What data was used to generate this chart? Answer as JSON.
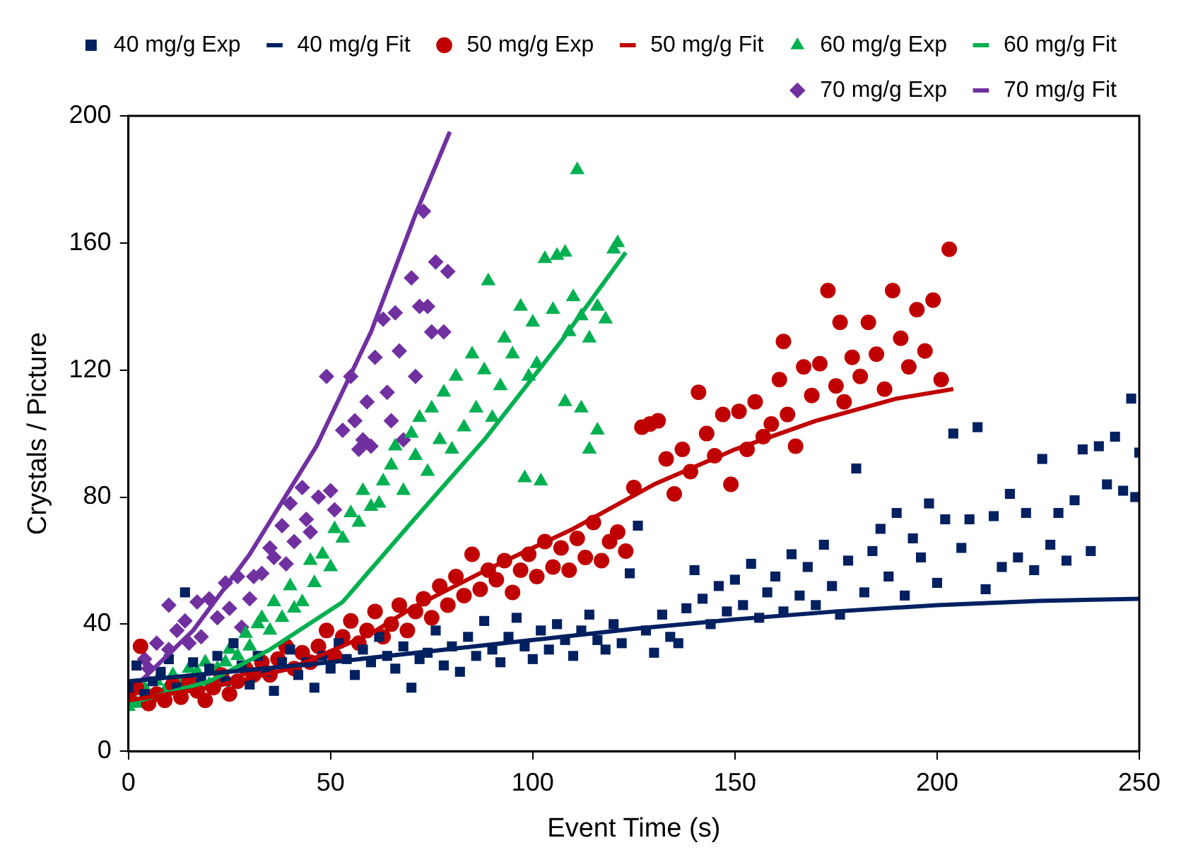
{
  "chart_data": {
    "type": "scatter",
    "xlabel": "Event Time (s)",
    "ylabel": "Crystals / Picture",
    "xlim": [
      0,
      250
    ],
    "xticks": [
      0,
      50,
      100,
      150,
      200,
      250
    ],
    "ylim": [
      0,
      200
    ],
    "yticks": [
      0,
      40,
      80,
      120,
      160,
      200
    ],
    "grid": false,
    "legend": "top",
    "series": [
      {
        "name": "40 mg/g Exp",
        "type": "scatter",
        "marker": "square",
        "color": "#002060",
        "x": [
          0,
          2,
          4,
          6,
          8,
          10,
          12,
          14,
          16,
          18,
          20,
          22,
          24,
          26,
          28,
          30,
          32,
          34,
          36,
          38,
          40,
          42,
          44,
          46,
          48,
          50,
          52,
          54,
          56,
          58,
          60,
          62,
          64,
          66,
          68,
          70,
          72,
          74,
          76,
          78,
          80,
          82,
          84,
          86,
          88,
          90,
          92,
          94,
          96,
          98,
          100,
          102,
          104,
          106,
          108,
          110,
          112,
          114,
          116,
          118,
          120,
          122,
          124,
          126,
          128,
          130,
          132,
          134,
          136,
          138,
          140,
          142,
          144,
          146,
          148,
          150,
          152,
          154,
          156,
          158,
          160,
          162,
          164,
          166,
          168,
          170,
          172,
          174,
          176,
          178,
          180,
          182,
          184,
          186,
          188,
          190,
          192,
          194,
          196,
          198,
          200,
          202,
          204,
          206,
          208,
          210,
          212,
          214,
          216,
          218,
          220,
          222,
          224,
          226,
          228,
          230,
          232,
          234,
          236,
          238,
          240,
          242,
          244,
          246,
          248,
          249,
          250
        ],
        "values": [
          20,
          27,
          18,
          22,
          25,
          29,
          20,
          50,
          28,
          23,
          26,
          30,
          22,
          34,
          27,
          21,
          30,
          25,
          19,
          28,
          32,
          24,
          28,
          20,
          30,
          26,
          34,
          29,
          24,
          32,
          28,
          36,
          30,
          26,
          33,
          20,
          29,
          31,
          38,
          27,
          33,
          25,
          36,
          30,
          41,
          32,
          28,
          36,
          42,
          33,
          29,
          38,
          32,
          40,
          35,
          30,
          38,
          43,
          35,
          32,
          40,
          34,
          56,
          71,
          38,
          31,
          43,
          36,
          34,
          45,
          57,
          48,
          40,
          52,
          44,
          54,
          46,
          59,
          42,
          50,
          55,
          44,
          62,
          49,
          58,
          46,
          65,
          52,
          43,
          60,
          89,
          50,
          63,
          70,
          55,
          75,
          49,
          67,
          61,
          78,
          53,
          73,
          100,
          64,
          73,
          102,
          51,
          74,
          58,
          81,
          61,
          75,
          57,
          92,
          65,
          75,
          60,
          79,
          95,
          63,
          96,
          84,
          99,
          82,
          111,
          80,
          94
        ]
      },
      {
        "name": "40 mg/g Fit",
        "type": "line",
        "marker": "none",
        "color": "#002060",
        "x": [
          0,
          25,
          50,
          75,
          100,
          125,
          150,
          175,
          200,
          225,
          250
        ],
        "values": [
          22,
          25,
          28,
          31.5,
          35,
          38.5,
          41.5,
          44,
          46,
          47.3,
          48
        ]
      },
      {
        "name": "50 mg/g Exp",
        "type": "scatter",
        "marker": "circle",
        "color": "#c00000",
        "x": [
          0,
          2,
          3,
          5,
          7,
          9,
          11,
          13,
          15,
          17,
          19,
          21,
          23,
          25,
          27,
          29,
          31,
          33,
          35,
          37,
          39,
          41,
          43,
          45,
          47,
          49,
          51,
          53,
          55,
          57,
          59,
          61,
          63,
          65,
          67,
          69,
          71,
          73,
          75,
          77,
          79,
          81,
          83,
          85,
          87,
          89,
          91,
          93,
          95,
          97,
          99,
          101,
          103,
          105,
          107,
          109,
          111,
          113,
          115,
          117,
          119,
          121,
          123,
          125,
          127,
          129,
          131,
          133,
          135,
          137,
          139,
          141,
          143,
          145,
          147,
          149,
          151,
          153,
          155,
          157,
          159,
          161,
          162,
          163,
          165,
          167,
          169,
          171,
          173,
          175,
          176,
          177,
          179,
          181,
          183,
          185,
          187,
          189,
          191,
          193,
          195,
          197,
          199,
          201,
          203
        ],
        "values": [
          17,
          20,
          33,
          15,
          18,
          16,
          21,
          17,
          22,
          19,
          16,
          20,
          24,
          18,
          22,
          26,
          24,
          28,
          24,
          29,
          33,
          26,
          31,
          28,
          33,
          38,
          30,
          36,
          41,
          34,
          38,
          44,
          36,
          40,
          46,
          38,
          44,
          48,
          42,
          52,
          46,
          55,
          49,
          62,
          51,
          57,
          54,
          60,
          50,
          57,
          62,
          55,
          66,
          58,
          64,
          57,
          67,
          61,
          72,
          60,
          66,
          69,
          63,
          83,
          102,
          103,
          104,
          92,
          81,
          95,
          88,
          113,
          100,
          93,
          106,
          84,
          107,
          95,
          110,
          99,
          103,
          117,
          129,
          106,
          96,
          121,
          112,
          122,
          145,
          115,
          135,
          110,
          124,
          118,
          135,
          125,
          114,
          145,
          130,
          121,
          139,
          126,
          142,
          117,
          158
        ]
      },
      {
        "name": "50 mg/g Fit",
        "type": "line",
        "marker": "none",
        "color": "#c00000",
        "x": [
          0,
          20,
          40,
          60,
          70,
          90,
          110,
          130,
          150,
          170,
          190,
          204
        ],
        "values": [
          16,
          20,
          26,
          37,
          45,
          58,
          70,
          84,
          95,
          104,
          111,
          114
        ]
      },
      {
        "name": "60 mg/g Exp",
        "type": "scatter",
        "marker": "triangle",
        "color": "#00b050",
        "x": [
          0,
          2,
          4,
          7,
          9,
          11,
          13,
          15,
          17,
          19,
          20,
          22,
          24,
          25,
          27,
          29,
          30,
          32,
          33,
          35,
          36,
          38,
          40,
          41,
          43,
          45,
          46,
          48,
          50,
          51,
          53,
          55,
          57,
          58,
          60,
          62,
          63,
          65,
          66,
          68,
          70,
          71,
          72,
          74,
          75,
          77,
          78,
          80,
          81,
          83,
          85,
          86,
          88,
          89,
          90,
          92,
          93,
          95,
          97,
          98,
          99,
          100,
          101,
          102,
          103,
          105,
          106,
          108,
          108,
          109,
          110,
          111,
          112,
          112,
          114,
          114,
          116,
          116,
          118,
          120,
          121
        ],
        "values": [
          14,
          15,
          20,
          22,
          19,
          24,
          21,
          26,
          25,
          28,
          21,
          26,
          28,
          32,
          30,
          37,
          33,
          40,
          42,
          38,
          47,
          42,
          52,
          45,
          47,
          60,
          53,
          62,
          58,
          70,
          67,
          75,
          72,
          82,
          77,
          78,
          85,
          90,
          96,
          82,
          100,
          93,
          105,
          88,
          108,
          98,
          113,
          95,
          118,
          102,
          125,
          108,
          120,
          148,
          105,
          115,
          130,
          125,
          140,
          86,
          118,
          135,
          122,
          85,
          155,
          139,
          156,
          157,
          110,
          132,
          143,
          183,
          137,
          108,
          130,
          95,
          140,
          101,
          136,
          158,
          160
        ]
      },
      {
        "name": "60 mg/g Fit",
        "type": "line",
        "marker": "none",
        "color": "#00b050",
        "x": [
          0,
          20,
          35,
          53,
          70,
          88,
          107,
          123
        ],
        "values": [
          15,
          22,
          32,
          47,
          72,
          98,
          129,
          157
        ]
      },
      {
        "name": "70 mg/g Exp",
        "type": "scatter",
        "marker": "diamond",
        "color": "#7030a0",
        "x": [
          4,
          5,
          7,
          10,
          10,
          12,
          14,
          15,
          17,
          18,
          20,
          22,
          24,
          25,
          27,
          28,
          30,
          31,
          33,
          35,
          36,
          38,
          39,
          40,
          41,
          43,
          44,
          45,
          47,
          49,
          50,
          51,
          53,
          55,
          56,
          57,
          58,
          59,
          60,
          61,
          63,
          64,
          65,
          66,
          67,
          68,
          70,
          71,
          72,
          73,
          74,
          75,
          76,
          78,
          79
        ],
        "values": [
          29,
          26,
          34,
          32,
          46,
          38,
          41,
          34,
          47,
          36,
          48,
          42,
          53,
          45,
          55,
          39,
          48,
          55,
          56,
          64,
          61,
          71,
          59,
          78,
          66,
          83,
          73,
          69,
          80,
          118,
          82,
          76,
          101,
          118,
          104,
          95,
          98,
          110,
          96,
          124,
          136,
          113,
          104,
          138,
          126,
          98,
          149,
          118,
          140,
          170,
          140,
          132,
          154,
          132,
          151
        ]
      },
      {
        "name": "70 mg/g Fit",
        "type": "line",
        "marker": "none",
        "color": "#7030a0",
        "x": [
          3,
          16,
          30,
          46.5,
          60,
          71,
          79.5
        ],
        "values": [
          22,
          38,
          62,
          96,
          132,
          169,
          195
        ]
      }
    ]
  }
}
